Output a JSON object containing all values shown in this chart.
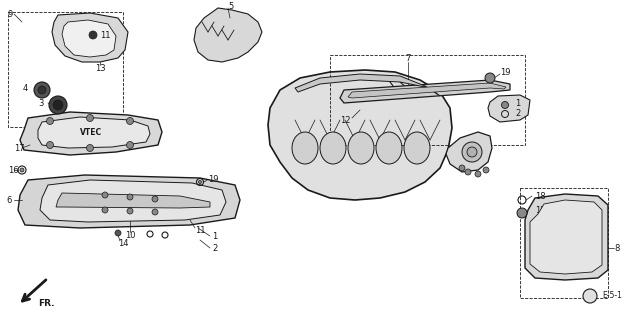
{
  "bg_color": "#ffffff",
  "line_color": "#1a1a1a",
  "fig_width": 6.29,
  "fig_height": 3.2,
  "dpi": 100,
  "ref_label": "E-5-1"
}
